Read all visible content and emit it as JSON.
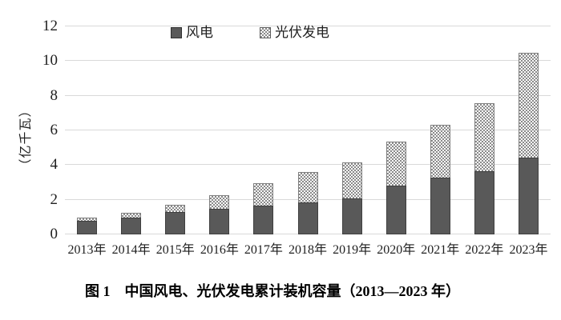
{
  "figure_caption": "图 1　中国风电、光伏发电累计装机容量（2013—2023 年）",
  "chart_data": {
    "type": "bar",
    "stacked": true,
    "title": "",
    "xlabel": "",
    "ylabel": "（亿千瓦）",
    "ylim": [
      0,
      12
    ],
    "yticks": [
      0,
      2,
      4,
      6,
      8,
      10,
      12
    ],
    "grid": true,
    "legend_position": "top-center",
    "categories": [
      "2013年",
      "2014年",
      "2015年",
      "2016年",
      "2017年",
      "2018年",
      "2019年",
      "2020年",
      "2021年",
      "2022年",
      "2023年"
    ],
    "series": [
      {
        "name": "风电",
        "fill": "solid",
        "color": "#595959",
        "values": [
          0.77,
          0.96,
          1.29,
          1.49,
          1.64,
          1.84,
          2.1,
          2.81,
          3.28,
          3.65,
          4.41
        ]
      },
      {
        "name": "光伏发电",
        "fill": "dotted-pattern",
        "color": "#8a8a8a",
        "values": [
          0.19,
          0.28,
          0.43,
          0.77,
          1.3,
          1.74,
          2.04,
          2.53,
          3.06,
          3.93,
          6.09
        ]
      }
    ]
  },
  "colors": {
    "background": "#ffffff",
    "gridline": "#d9d9d9",
    "wind_bar": "#595959",
    "wind_bar_border": "#3f3f3f",
    "pattern_dot": "#8a8a8a",
    "pattern_background": "#fbfbfb",
    "text": "#1f1f1f"
  },
  "icons": {
    "legend_wind_marker": "solid-square-icon",
    "legend_solar_marker": "dotted-square-icon"
  }
}
